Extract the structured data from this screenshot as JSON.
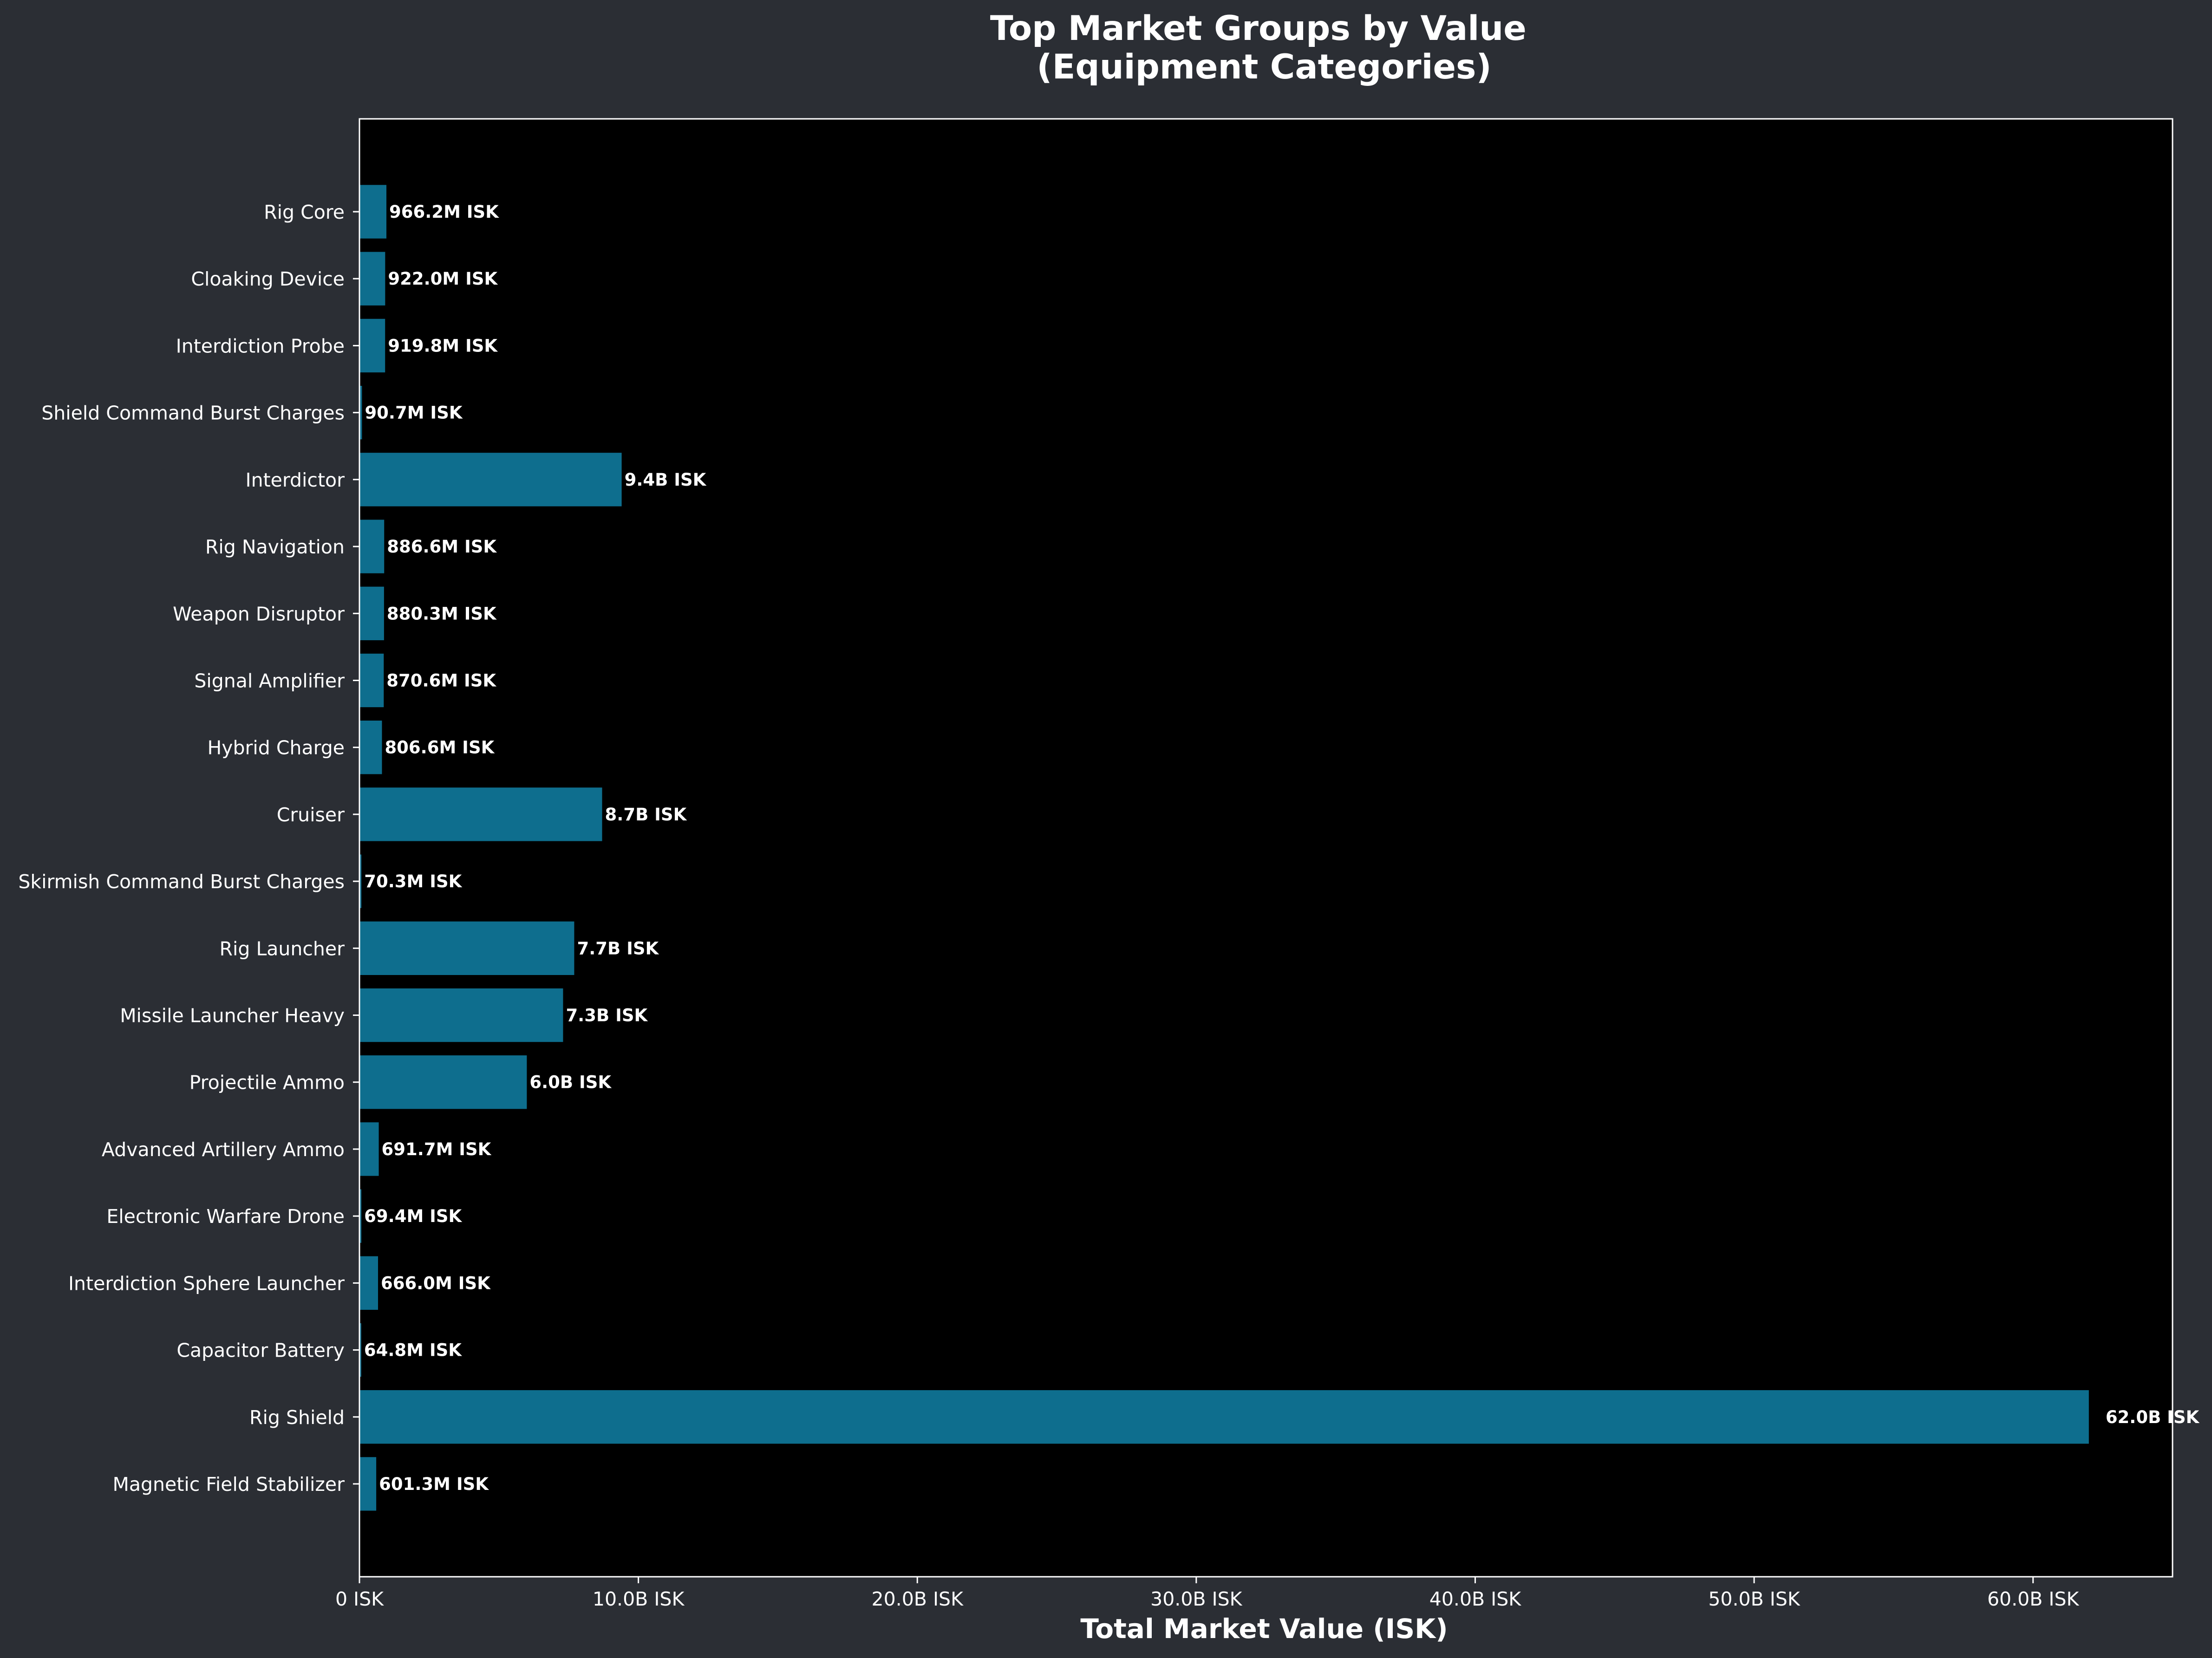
{
  "chart_data": {
    "type": "bar",
    "orientation": "horizontal",
    "title_lines": [
      "Top Market Groups by Value",
      "(Equipment Categories)"
    ],
    "xlabel": "Total Market Value (ISK)",
    "ylabel": "",
    "xlim": [
      0,
      65000000000
    ],
    "x_ticks": [
      {
        "value": 0,
        "label": "0 ISK"
      },
      {
        "value": 10000000000,
        "label": "10.0B ISK"
      },
      {
        "value": 20000000000,
        "label": "20.0B ISK"
      },
      {
        "value": 30000000000,
        "label": "30.0B ISK"
      },
      {
        "value": 40000000000,
        "label": "40.0B ISK"
      },
      {
        "value": 50000000000,
        "label": "50.0B ISK"
      },
      {
        "value": 60000000000,
        "label": "60.0B ISK"
      }
    ],
    "grid": false,
    "colors": {
      "figure_background": "#2b2e34",
      "plot_background": "#000000",
      "bar": "#0e6e8e",
      "text": "#ffffff",
      "axes": "#ffffff"
    },
    "categories": [
      "Rig Core",
      "Cloaking Device",
      "Interdiction Probe",
      "Shield Command Burst Charges",
      "Interdictor",
      "Rig Navigation",
      "Weapon Disruptor",
      "Signal Amplifier",
      "Hybrid Charge",
      "Cruiser",
      "Skirmish Command Burst Charges",
      "Rig Launcher",
      "Missile Launcher Heavy",
      "Projectile Ammo",
      "Advanced Artillery Ammo",
      "Electronic Warfare Drone",
      "Interdiction Sphere Launcher",
      "Capacitor Battery",
      "Rig Shield",
      "Magnetic Field Stabilizer"
    ],
    "values": [
      966200000,
      922000000,
      919800000,
      90700000,
      9400000000,
      886600000,
      880300000,
      870600000,
      806600000,
      8700000000,
      70300000,
      7700000000,
      7300000000,
      6000000000,
      691700000,
      69400000,
      666000000,
      64800000,
      62000000000,
      601300000
    ],
    "data_labels": [
      "966.2M ISK",
      "922.0M ISK",
      "919.8M ISK",
      "90.7M ISK",
      "9.4B ISK",
      "886.6M ISK",
      "880.3M ISK",
      "870.6M ISK",
      "806.6M ISK",
      "8.7B ISK",
      "70.3M ISK",
      "7.7B ISK",
      "7.3B ISK",
      "6.0B ISK",
      "691.7M ISK",
      "69.4M ISK",
      "666.0M ISK",
      "64.8M ISK",
      "62.0B ISK",
      "601.3M ISK"
    ]
  }
}
